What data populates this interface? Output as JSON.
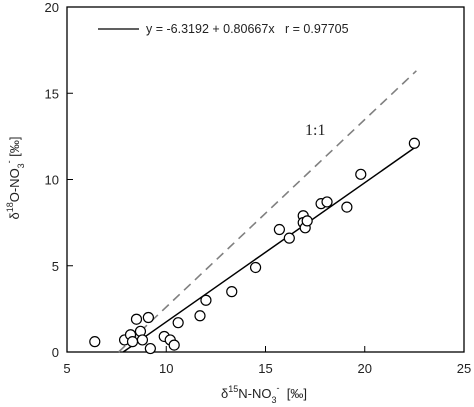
{
  "chart_data": {
    "type": "scatter",
    "title": "",
    "xlabel_parts": [
      "δ",
      "15",
      "N-NO",
      "3",
      "-",
      "  [‰]"
    ],
    "ylabel_parts": [
      "δ",
      "18",
      "O-NO",
      "3",
      "-",
      " [‰]"
    ],
    "xlim": [
      5,
      25
    ],
    "ylim": [
      0,
      20
    ],
    "xticks": [
      "5",
      "10",
      "15",
      "20",
      "25"
    ],
    "yticks": [
      "0",
      "5",
      "10",
      "15",
      "20"
    ],
    "grid": false,
    "legend_placement": "top-left",
    "points": [
      {
        "x": 6.4,
        "y": 0.6
      },
      {
        "x": 7.9,
        "y": 0.7
      },
      {
        "x": 8.2,
        "y": 1.0
      },
      {
        "x": 8.3,
        "y": 0.6
      },
      {
        "x": 8.5,
        "y": 1.9
      },
      {
        "x": 8.7,
        "y": 1.2
      },
      {
        "x": 8.8,
        "y": 0.7
      },
      {
        "x": 9.1,
        "y": 2.0
      },
      {
        "x": 9.2,
        "y": 0.2
      },
      {
        "x": 9.9,
        "y": 0.9
      },
      {
        "x": 10.2,
        "y": 0.7
      },
      {
        "x": 10.4,
        "y": 0.4
      },
      {
        "x": 10.6,
        "y": 1.7
      },
      {
        "x": 11.7,
        "y": 2.1
      },
      {
        "x": 12.0,
        "y": 3.0
      },
      {
        "x": 13.3,
        "y": 3.5
      },
      {
        "x": 14.5,
        "y": 4.9
      },
      {
        "x": 15.7,
        "y": 7.1
      },
      {
        "x": 16.2,
        "y": 6.6
      },
      {
        "x": 16.9,
        "y": 7.9
      },
      {
        "x": 16.9,
        "y": 7.5
      },
      {
        "x": 17.0,
        "y": 7.2
      },
      {
        "x": 17.1,
        "y": 7.6
      },
      {
        "x": 17.8,
        "y": 8.6
      },
      {
        "x": 18.1,
        "y": 8.7
      },
      {
        "x": 19.1,
        "y": 8.4
      },
      {
        "x": 19.8,
        "y": 10.3
      },
      {
        "x": 22.5,
        "y": 12.1
      }
    ],
    "regression": {
      "label": "y = -6.3192 + 0.80667x   r = 0.97705",
      "intercept": -6.3192,
      "slope": 0.80667,
      "x_range": [
        7.83,
        22.5
      ],
      "color": "#000000"
    },
    "reference_line": {
      "label": "1:1",
      "x_range": [
        7.6,
        22.6
      ],
      "y_range": [
        0,
        16.3
      ],
      "color": "#808080",
      "style": "dashed"
    },
    "marker_color": "#000000"
  }
}
